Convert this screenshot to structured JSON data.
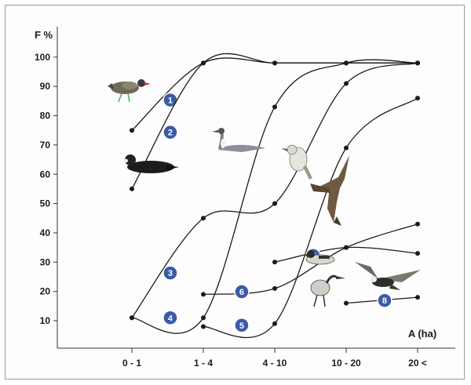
{
  "chart_data": {
    "type": "line",
    "ylabel": "F %",
    "xlabel": "A  (ha)",
    "categories": [
      "0 - 1",
      "1 - 4",
      "4 - 10",
      "10 - 20",
      "20 <"
    ],
    "yticks": [
      10,
      20,
      30,
      40,
      50,
      60,
      70,
      80,
      90,
      100
    ],
    "ylim": [
      5,
      105
    ],
    "grid": false,
    "series": [
      {
        "name": "1",
        "values": [
          75,
          98,
          98,
          98,
          98
        ]
      },
      {
        "name": "2",
        "values": [
          55,
          98,
          98,
          98,
          98
        ]
      },
      {
        "name": "3",
        "values": [
          11,
          45,
          50,
          91,
          98
        ]
      },
      {
        "name": "4",
        "values": [
          11,
          11,
          83,
          98,
          98
        ]
      },
      {
        "name": "5",
        "values": [
          null,
          8,
          9,
          69,
          86
        ]
      },
      {
        "name": "6",
        "values": [
          null,
          19,
          21,
          35,
          43
        ]
      },
      {
        "name": "7",
        "values": [
          null,
          null,
          30,
          35,
          33
        ]
      },
      {
        "name": "8",
        "values": [
          null,
          null,
          null,
          16,
          18
        ]
      }
    ],
    "badge_color": "#3b5ba5",
    "line_color": "#1a1a1a"
  },
  "illustrations": {
    "moorhen": "moorhen-icon",
    "coot": "coot-icon",
    "grebe": "grebe-icon",
    "warbler": "warbler-icon",
    "kite": "kite-icon",
    "duck": "duck-icon",
    "heron": "heron-icon",
    "eagle": "eagle-icon"
  }
}
